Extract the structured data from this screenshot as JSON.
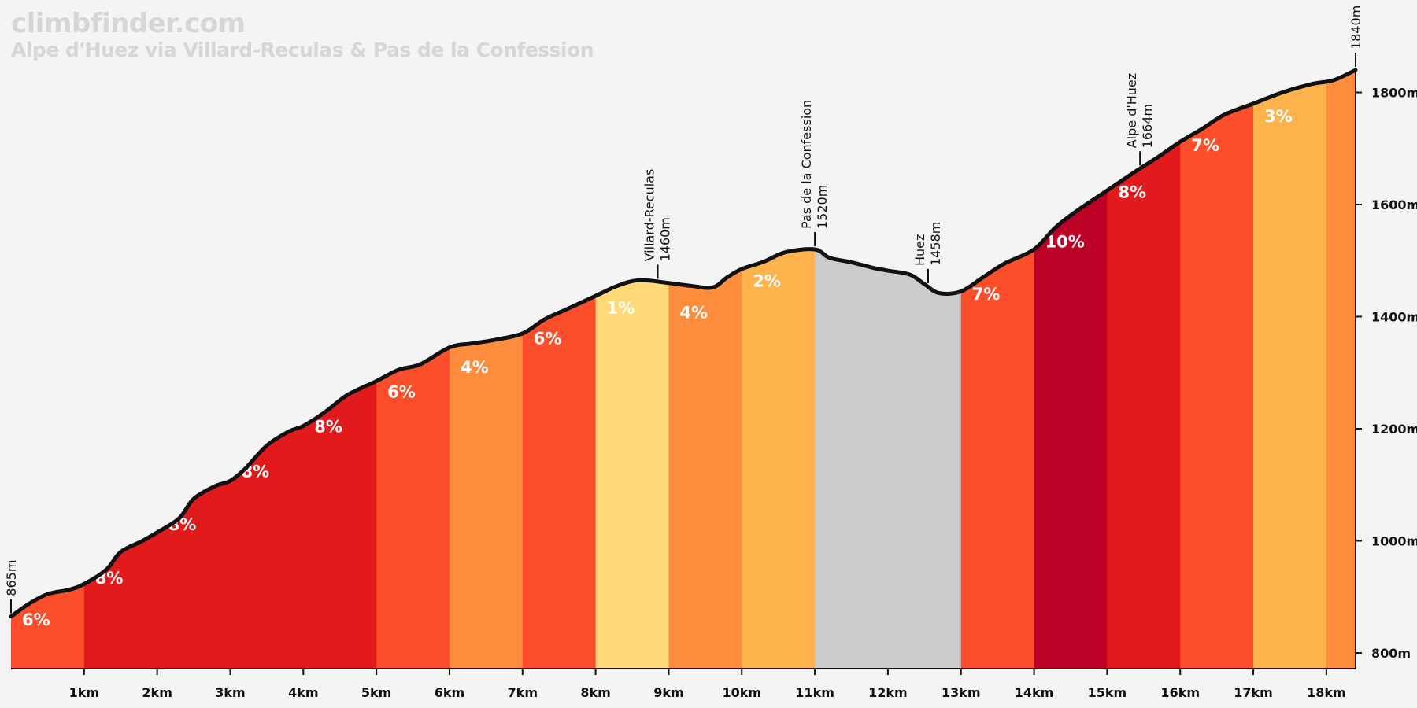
{
  "site_name": "climbfinder.com",
  "title": "Alpe d'Huez via Villard-Reculas & Pas de la Confession",
  "chart_data": {
    "type": "area",
    "title": "Alpe d'Huez via Villard-Reculas & Pas de la Confession",
    "xlabel": "",
    "ylabel": "",
    "xlim": [
      0,
      18.4
    ],
    "ylim": [
      760,
      1840
    ],
    "x_ticks": [
      {
        "value": 1,
        "label": "1km"
      },
      {
        "value": 2,
        "label": "2km"
      },
      {
        "value": 3,
        "label": "3km"
      },
      {
        "value": 4,
        "label": "4km"
      },
      {
        "value": 5,
        "label": "5km"
      },
      {
        "value": 6,
        "label": "6km"
      },
      {
        "value": 7,
        "label": "7km"
      },
      {
        "value": 8,
        "label": "8km"
      },
      {
        "value": 9,
        "label": "9km"
      },
      {
        "value": 10,
        "label": "10km"
      },
      {
        "value": 11,
        "label": "11km"
      },
      {
        "value": 12,
        "label": "12km"
      },
      {
        "value": 13,
        "label": "13km"
      },
      {
        "value": 14,
        "label": "14km"
      },
      {
        "value": 15,
        "label": "15km"
      },
      {
        "value": 16,
        "label": "16km"
      },
      {
        "value": 17,
        "label": "17km"
      },
      {
        "value": 18,
        "label": "18km"
      }
    ],
    "y_ticks": [
      {
        "value": 800,
        "label": "800m"
      },
      {
        "value": 1000,
        "label": "1000m"
      },
      {
        "value": 1200,
        "label": "1200m"
      },
      {
        "value": 1400,
        "label": "1400m"
      },
      {
        "value": 1600,
        "label": "1600m"
      },
      {
        "value": 1800,
        "label": "1800m"
      }
    ],
    "profile": [
      [
        0,
        865
      ],
      [
        0.25,
        888
      ],
      [
        0.5,
        905
      ],
      [
        0.8,
        913
      ],
      [
        1.0,
        923
      ],
      [
        1.3,
        948
      ],
      [
        1.5,
        980
      ],
      [
        1.8,
        1000
      ],
      [
        2.0,
        1015
      ],
      [
        2.3,
        1040
      ],
      [
        2.5,
        1075
      ],
      [
        2.8,
        1098
      ],
      [
        3.0,
        1107
      ],
      [
        3.2,
        1128
      ],
      [
        3.5,
        1170
      ],
      [
        3.8,
        1195
      ],
      [
        4.0,
        1205
      ],
      [
        4.3,
        1230
      ],
      [
        4.6,
        1260
      ],
      [
        5.0,
        1285
      ],
      [
        5.3,
        1305
      ],
      [
        5.6,
        1315
      ],
      [
        6.0,
        1345
      ],
      [
        6.3,
        1352
      ],
      [
        6.6,
        1358
      ],
      [
        7.0,
        1370
      ],
      [
        7.3,
        1395
      ],
      [
        7.6,
        1413
      ],
      [
        8.0,
        1437
      ],
      [
        8.3,
        1455
      ],
      [
        8.6,
        1465
      ],
      [
        9.0,
        1460
      ],
      [
        9.3,
        1455
      ],
      [
        9.6,
        1452
      ],
      [
        9.8,
        1470
      ],
      [
        10.0,
        1485
      ],
      [
        10.3,
        1498
      ],
      [
        10.6,
        1515
      ],
      [
        11.0,
        1520
      ],
      [
        11.2,
        1505
      ],
      [
        11.5,
        1497
      ],
      [
        11.8,
        1487
      ],
      [
        12.0,
        1482
      ],
      [
        12.3,
        1475
      ],
      [
        12.5,
        1458
      ],
      [
        12.7,
        1442
      ],
      [
        13.0,
        1445
      ],
      [
        13.3,
        1470
      ],
      [
        13.6,
        1495
      ],
      [
        14.0,
        1520
      ],
      [
        14.3,
        1560
      ],
      [
        14.6,
        1590
      ],
      [
        15.0,
        1625
      ],
      [
        15.4,
        1660
      ],
      [
        15.7,
        1685
      ],
      [
        16.0,
        1712
      ],
      [
        16.3,
        1735
      ],
      [
        16.6,
        1760
      ],
      [
        17.0,
        1780
      ],
      [
        17.4,
        1800
      ],
      [
        17.8,
        1815
      ],
      [
        18.1,
        1822
      ],
      [
        18.4,
        1840
      ]
    ],
    "segments": [
      {
        "start": 0,
        "end": 1,
        "grade": "6%",
        "color": "#fc4e2a"
      },
      {
        "start": 1,
        "end": 2,
        "grade": "8%",
        "color": "#e31a1c"
      },
      {
        "start": 2,
        "end": 3,
        "grade": "8%",
        "color": "#e31a1c"
      },
      {
        "start": 3,
        "end": 4,
        "grade": "8%",
        "color": "#e31a1c"
      },
      {
        "start": 4,
        "end": 5,
        "grade": "8%",
        "color": "#e31a1c"
      },
      {
        "start": 5,
        "end": 6,
        "grade": "6%",
        "color": "#fc4e2a"
      },
      {
        "start": 6,
        "end": 7,
        "grade": "4%",
        "color": "#fd8d3c"
      },
      {
        "start": 7,
        "end": 8,
        "grade": "6%",
        "color": "#fc4e2a"
      },
      {
        "start": 8,
        "end": 9,
        "grade": "1%",
        "color": "#fed976"
      },
      {
        "start": 9,
        "end": 10,
        "grade": "4%",
        "color": "#fd8d3c"
      },
      {
        "start": 10,
        "end": 11,
        "grade": "2%",
        "color": "#feb24c"
      },
      {
        "start": 11,
        "end": 13,
        "grade": "",
        "color": "#cbcbcb"
      },
      {
        "start": 13,
        "end": 14,
        "grade": "7%",
        "color": "#fc4e2a"
      },
      {
        "start": 14,
        "end": 15,
        "grade": "10%",
        "color": "#bd0026"
      },
      {
        "start": 15,
        "end": 16,
        "grade": "8%",
        "color": "#e31a1c"
      },
      {
        "start": 16,
        "end": 17,
        "grade": "7%",
        "color": "#fc4e2a"
      },
      {
        "start": 17,
        "end": 18,
        "grade": "3%",
        "color": "#feb24c"
      },
      {
        "start": 18,
        "end": 18.4,
        "grade": "",
        "color": "#fd8d3c"
      }
    ],
    "waypoints": [
      {
        "km": 0,
        "name": "",
        "elevation": "865m"
      },
      {
        "km": 8.85,
        "name": "Villard-Reculas",
        "elevation": "1460m"
      },
      {
        "km": 11.0,
        "name": "Pas de la Confession",
        "elevation": "1520m"
      },
      {
        "km": 12.55,
        "name": "Huez",
        "elevation": "1458m"
      },
      {
        "km": 15.45,
        "name": "Alpe d'Huez",
        "elevation": "1664m"
      },
      {
        "km": 18.4,
        "name": "",
        "elevation": "1840m"
      }
    ]
  }
}
